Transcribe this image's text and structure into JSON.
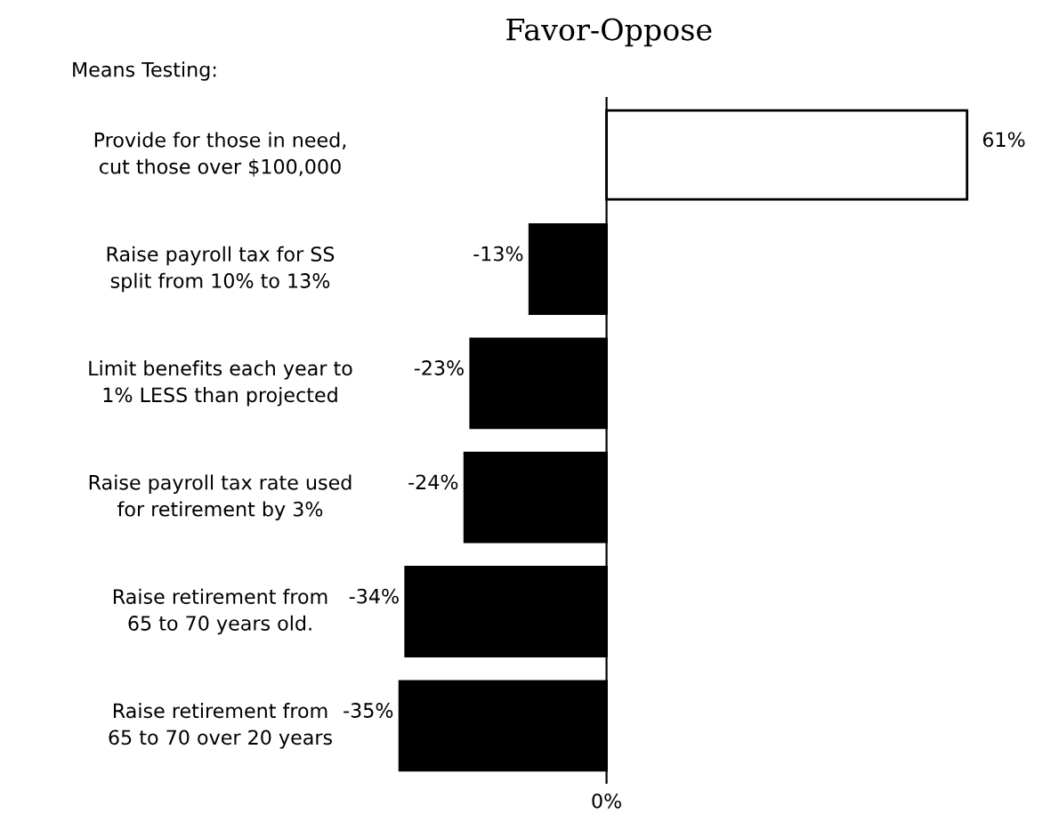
{
  "chart_data": {
    "type": "bar",
    "orientation": "horizontal",
    "title": "Favor-Oppose",
    "annotations": [
      "Means Testing:",
      "0%"
    ],
    "categories": [
      "Provide for those in need,\ncut those over $100,000",
      "Raise payroll tax for SS\nsplit from 10% to 13%",
      "Limit benefits each year to\n1% LESS than projected",
      "Raise payroll tax rate used\nfor retirement by 3%",
      "Raise retirement from\n65 to 70 years old.",
      "Raise retirement from\n65 to 70 over 20 years"
    ],
    "values": [
      61,
      -13,
      -23,
      -24,
      -34,
      -35
    ],
    "value_labels": [
      "61%",
      "-13%",
      "-23%",
      "-24%",
      "-34%",
      "-35%"
    ],
    "colors": [
      "#ffffff",
      "#000000",
      "#000000",
      "#000000",
      "#000000",
      "#000000"
    ]
  }
}
